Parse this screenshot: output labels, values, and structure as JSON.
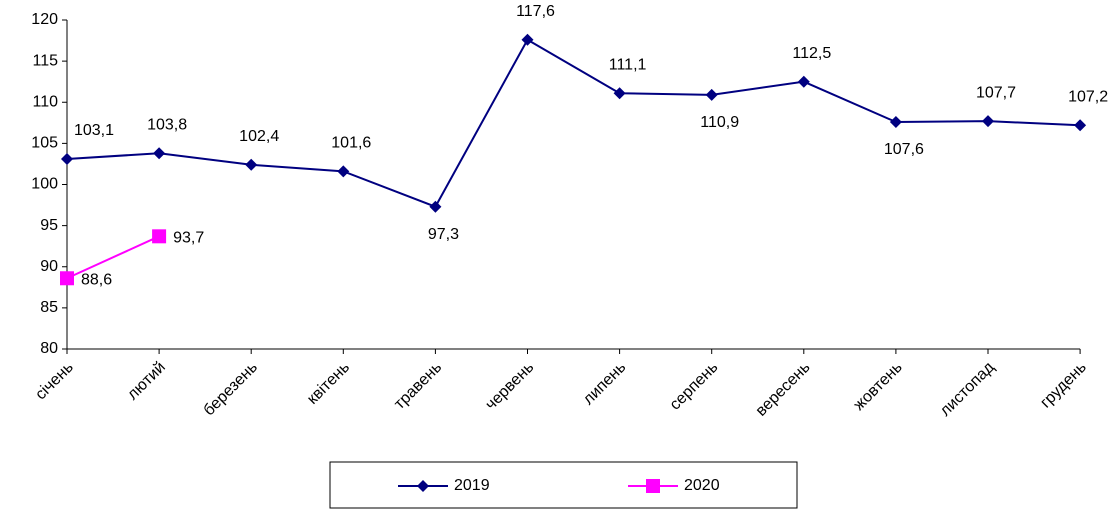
{
  "chart_data": {
    "type": "line",
    "categories": [
      "січень",
      "лютий",
      "березень",
      "квітень",
      "травень",
      "червень",
      "липень",
      "серпень",
      "вересень",
      "жовтень",
      "листопад",
      "грудень"
    ],
    "series": [
      {
        "name": "2019",
        "color": "#000080",
        "marker": "diamond",
        "values": [
          103.1,
          103.8,
          102.4,
          101.6,
          97.3,
          117.6,
          111.1,
          110.9,
          112.5,
          107.6,
          107.7,
          107.2
        ],
        "value_labels": [
          "103,1",
          "103,8",
          "102,4",
          "101,6",
          "97,3",
          "117,6",
          "111,1",
          "110,9",
          "112,5",
          "107,6",
          "107,7",
          "107,2"
        ]
      },
      {
        "name": "2020",
        "color": "#ff00ff",
        "marker": "square",
        "values": [
          88.6,
          93.7,
          null,
          null,
          null,
          null,
          null,
          null,
          null,
          null,
          null,
          null
        ],
        "value_labels": [
          "88,6",
          "93,7",
          null,
          null,
          null,
          null,
          null,
          null,
          null,
          null,
          null,
          null
        ]
      }
    ],
    "ylim": [
      80,
      120
    ],
    "yticks": [
      80,
      85,
      90,
      95,
      100,
      105,
      110,
      115,
      120
    ],
    "grid": false,
    "legend": "bottom"
  }
}
